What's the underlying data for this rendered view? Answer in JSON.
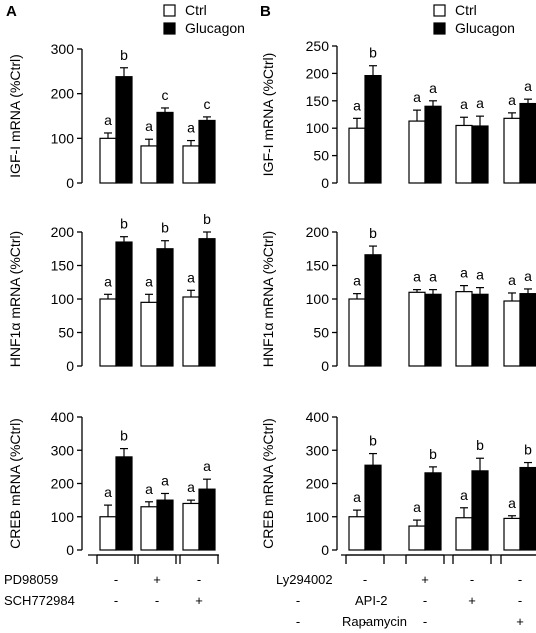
{
  "panels": [
    {
      "label": "A",
      "legend": [
        "Ctrl",
        "Glucagon"
      ]
    },
    {
      "label": "B",
      "legend": [
        "Ctrl",
        "Glucagon"
      ]
    }
  ],
  "treatments": {
    "A": [
      {
        "name": "PD98059",
        "signs": [
          "-",
          "+",
          "-"
        ]
      },
      {
        "name": "SCH772984",
        "signs": [
          "-",
          "-",
          "+"
        ]
      }
    ],
    "B": [
      {
        "name": "Ly294002",
        "signs": [
          "-",
          "+",
          "-",
          "-"
        ]
      },
      {
        "name": "API-2",
        "signs": [
          "-",
          "-",
          "+",
          "-"
        ]
      },
      {
        "name": "Rapamycin",
        "signs": [
          "-",
          "-",
          "-",
          "+"
        ]
      }
    ]
  },
  "colors": {
    "ctrl": "#ffffff",
    "glucagon": "#000000"
  },
  "chart_data": [
    {
      "type": "bar",
      "panel": "A",
      "ylabel": "IGF-I mRNA (%Ctrl)",
      "ylim": [
        0,
        300
      ],
      "yticks": [
        0,
        100,
        200,
        300
      ],
      "series": [
        {
          "name": "Ctrl",
          "values": [
            100,
            83,
            83
          ],
          "errors": [
            12,
            15,
            12
          ],
          "letters": [
            "a",
            "a",
            "a"
          ]
        },
        {
          "name": "Glucagon",
          "values": [
            238,
            158,
            140
          ],
          "errors": [
            20,
            10,
            8
          ],
          "letters": [
            "b",
            "c",
            "c"
          ]
        }
      ]
    },
    {
      "type": "bar",
      "panel": "A",
      "ylabel": "HNF1α mRNA (%Ctrl)",
      "ylim": [
        0,
        200
      ],
      "yticks": [
        0,
        50,
        100,
        150,
        200
      ],
      "series": [
        {
          "name": "Ctrl",
          "values": [
            100,
            95,
            103
          ],
          "errors": [
            7,
            12,
            10
          ],
          "letters": [
            "a",
            "a",
            "a"
          ]
        },
        {
          "name": "Glucagon",
          "values": [
            185,
            175,
            190
          ],
          "errors": [
            8,
            12,
            10
          ],
          "letters": [
            "b",
            "b",
            "b"
          ]
        }
      ]
    },
    {
      "type": "bar",
      "panel": "A",
      "ylabel": "CREB mRNA (%Ctrl)",
      "ylim": [
        0,
        400
      ],
      "yticks": [
        0,
        100,
        200,
        300,
        400
      ],
      "series": [
        {
          "name": "Ctrl",
          "values": [
            100,
            130,
            140
          ],
          "errors": [
            35,
            15,
            10
          ],
          "letters": [
            "a",
            "a",
            "a"
          ]
        },
        {
          "name": "Glucagon",
          "values": [
            280,
            150,
            183
          ],
          "errors": [
            25,
            20,
            30
          ],
          "letters": [
            "b",
            "a",
            "a"
          ]
        }
      ]
    },
    {
      "type": "bar",
      "panel": "B",
      "ylabel": "IGF-I mRNA (%Ctrl)",
      "ylim": [
        0,
        250
      ],
      "yticks": [
        0,
        50,
        100,
        150,
        200,
        250
      ],
      "series": [
        {
          "name": "Ctrl",
          "values": [
            100,
            113,
            105,
            118
          ],
          "errors": [
            18,
            20,
            15,
            10
          ],
          "letters": [
            "a",
            "a",
            "a",
            "a"
          ]
        },
        {
          "name": "Glucagon",
          "values": [
            196,
            140,
            104,
            145
          ],
          "errors": [
            18,
            10,
            18,
            8
          ],
          "letters": [
            "b",
            "a",
            "a",
            "a"
          ]
        }
      ]
    },
    {
      "type": "bar",
      "panel": "B",
      "ylabel": "HNF1α mRNA (%Ctrl)",
      "ylim": [
        0,
        200
      ],
      "yticks": [
        0,
        50,
        100,
        150,
        200
      ],
      "series": [
        {
          "name": "Ctrl",
          "values": [
            100,
            110,
            111,
            97
          ],
          "errors": [
            8,
            4,
            9,
            12
          ],
          "letters": [
            "a",
            "a",
            "a",
            "a"
          ]
        },
        {
          "name": "Glucagon",
          "values": [
            166,
            107,
            107,
            108
          ],
          "errors": [
            13,
            7,
            10,
            7
          ],
          "letters": [
            "b",
            "a",
            "a",
            "a"
          ]
        }
      ]
    },
    {
      "type": "bar",
      "panel": "B",
      "ylabel": "CREB mRNA (%Ctrl)",
      "ylim": [
        0,
        400
      ],
      "yticks": [
        0,
        100,
        200,
        300,
        400
      ],
      "series": [
        {
          "name": "Ctrl",
          "values": [
            100,
            72,
            97,
            95
          ],
          "errors": [
            20,
            18,
            30,
            8
          ],
          "letters": [
            "a",
            "a",
            "a",
            "a"
          ]
        },
        {
          "name": "Glucagon",
          "values": [
            255,
            232,
            238,
            248
          ],
          "errors": [
            35,
            18,
            38,
            15
          ],
          "letters": [
            "b",
            "b",
            "b",
            "b"
          ]
        }
      ]
    }
  ]
}
